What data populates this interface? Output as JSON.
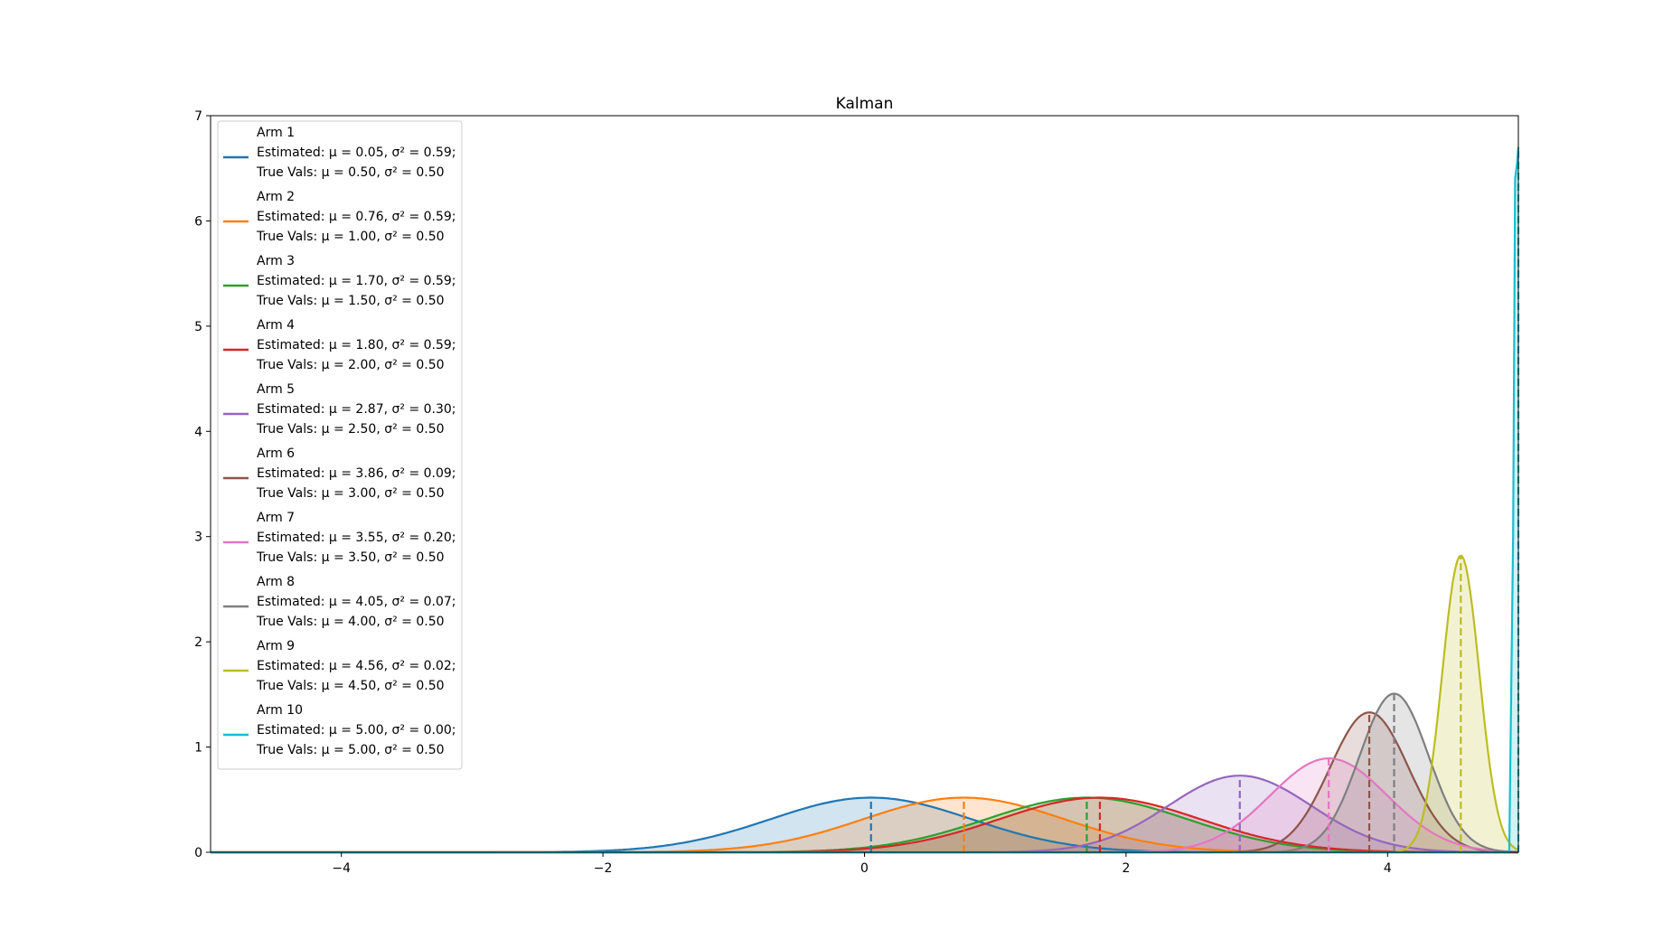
{
  "chart_data": {
    "type": "line",
    "title": "Kalman",
    "xlabel": "",
    "ylabel": "",
    "xlim": [
      -5,
      5
    ],
    "ylim": [
      0,
      7
    ],
    "xticks": [
      -4,
      -2,
      0,
      2,
      4
    ],
    "xtick_labels": [
      "−4",
      "−2",
      "0",
      "2",
      "4"
    ],
    "yticks": [
      0,
      1,
      2,
      3,
      4,
      5,
      6,
      7
    ],
    "ytick_labels": [
      "0",
      "1",
      "2",
      "3",
      "4",
      "5",
      "6",
      "7"
    ],
    "grid": false,
    "legend_position": "upper-left",
    "series": [
      {
        "name": "Arm 1",
        "color": "#1f77b4",
        "est_mu": 0.05,
        "est_var": 0.59,
        "true_mu": 0.5,
        "true_var": 0.5,
        "legend_lines": [
          "Arm 1",
          " Estimated: μ = 0.05, σ² = 0.59;",
          "True Vals: μ = 0.50, σ² = 0.50"
        ]
      },
      {
        "name": "Arm 2",
        "color": "#ff7f0e",
        "est_mu": 0.76,
        "est_var": 0.59,
        "true_mu": 1.0,
        "true_var": 0.5,
        "legend_lines": [
          "Arm 2",
          " Estimated: μ = 0.76, σ² = 0.59;",
          "True Vals: μ = 1.00, σ² = 0.50"
        ]
      },
      {
        "name": "Arm 3",
        "color": "#2ca02c",
        "est_mu": 1.7,
        "est_var": 0.59,
        "true_mu": 1.5,
        "true_var": 0.5,
        "legend_lines": [
          "Arm 3",
          " Estimated: μ = 1.70, σ² = 0.59;",
          "True Vals: μ = 1.50, σ² = 0.50"
        ]
      },
      {
        "name": "Arm 4",
        "color": "#d62728",
        "est_mu": 1.8,
        "est_var": 0.59,
        "true_mu": 2.0,
        "true_var": 0.5,
        "legend_lines": [
          "Arm 4",
          " Estimated: μ = 1.80, σ² = 0.59;",
          "True Vals: μ = 2.00, σ² = 0.50"
        ]
      },
      {
        "name": "Arm 5",
        "color": "#9467bd",
        "est_mu": 2.87,
        "est_var": 0.3,
        "true_mu": 2.5,
        "true_var": 0.5,
        "legend_lines": [
          "Arm 5",
          " Estimated: μ = 2.87, σ² = 0.30;",
          "True Vals: μ = 2.50, σ² = 0.50"
        ]
      },
      {
        "name": "Arm 6",
        "color": "#8c564b",
        "est_mu": 3.86,
        "est_var": 0.09,
        "true_mu": 3.0,
        "true_var": 0.5,
        "legend_lines": [
          "Arm 6",
          " Estimated: μ = 3.86, σ² = 0.09;",
          "True Vals: μ = 3.00, σ² = 0.50"
        ]
      },
      {
        "name": "Arm 7",
        "color": "#e377c2",
        "est_mu": 3.55,
        "est_var": 0.2,
        "true_mu": 3.5,
        "true_var": 0.5,
        "legend_lines": [
          "Arm 7",
          " Estimated: μ = 3.55, σ² = 0.20;",
          "True Vals: μ = 3.50, σ² = 0.50"
        ]
      },
      {
        "name": "Arm 8",
        "color": "#7f7f7f",
        "est_mu": 4.05,
        "est_var": 0.07,
        "true_mu": 4.0,
        "true_var": 0.5,
        "legend_lines": [
          "Arm 8",
          " Estimated: μ = 4.05, σ² = 0.07;",
          "True Vals: μ = 4.00, σ² = 0.50"
        ]
      },
      {
        "name": "Arm 9",
        "color": "#bcbd22",
        "est_mu": 4.56,
        "est_var": 0.02,
        "true_mu": 4.5,
        "true_var": 0.5,
        "legend_lines": [
          "Arm 9",
          " Estimated: μ = 4.56, σ² = 0.02;",
          "True Vals: μ = 4.50, σ² = 0.50"
        ]
      },
      {
        "name": "Arm 10",
        "color": "#17becf",
        "est_mu": 5.0,
        "est_var": 0.0,
        "true_mu": 5.0,
        "true_var": 0.5,
        "peak": 6.7,
        "legend_lines": [
          "Arm 10",
          " Estimated: μ = 5.00, σ² = 0.00;",
          "True Vals: μ = 5.00, σ² = 0.50"
        ]
      }
    ]
  }
}
